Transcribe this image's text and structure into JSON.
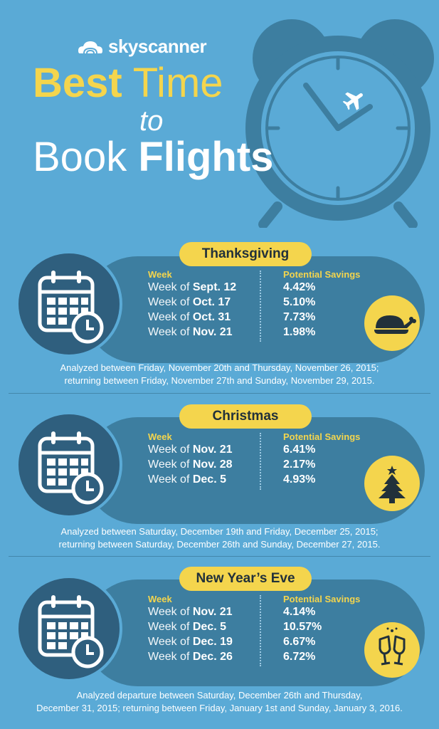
{
  "brand": {
    "name": "skyscanner"
  },
  "title": {
    "line1a": "Best",
    "line1b": " Time",
    "line2": "to",
    "line3a": "Book ",
    "line3b": "Flights"
  },
  "columns": {
    "week": "Week",
    "savings": "Potential Savings"
  },
  "week_prefix": "Week of ",
  "sections": [
    {
      "name": "Thanksgiving",
      "rows": [
        {
          "week": "Sept. 12",
          "savings": "4.42%"
        },
        {
          "week": "Oct. 17",
          "savings": "5.10%"
        },
        {
          "week": "Oct. 31",
          "savings": "7.73%"
        },
        {
          "week": "Nov. 21",
          "savings": "1.98%"
        }
      ],
      "note1": "Analyzed between Friday, November 20th and Thursday, November 26, 2015;",
      "note2": "returning between Friday, November 27th and Sunday, November 29, 2015."
    },
    {
      "name": "Christmas",
      "rows": [
        {
          "week": "Nov. 21",
          "savings": "6.41%"
        },
        {
          "week": "Nov. 28",
          "savings": "2.17%"
        },
        {
          "week": "Dec. 5",
          "savings": "4.93%"
        }
      ],
      "note1": "Analyzed between Saturday, December 19th and Friday, December 25, 2015;",
      "note2": "returning between Saturday, December 26th and Sunday, December 27, 2015."
    },
    {
      "name": "New Year’s Eve",
      "rows": [
        {
          "week": "Nov. 21",
          "savings": "4.14%"
        },
        {
          "week": "Dec. 5",
          "savings": "10.57%"
        },
        {
          "week": "Dec. 19",
          "savings": "6.67%"
        },
        {
          "week": "Dec. 26",
          "savings": "6.72%"
        }
      ],
      "note1": "Analyzed departure between Saturday, December 26th and Thursday,",
      "note2": "December 31, 2015; returning between Friday, January 1st and Sunday, January 3, 2016."
    }
  ],
  "icons": {
    "calendar": "calendar-clock-icon",
    "turkey": "turkey-icon",
    "tree": "christmas-tree-icon",
    "champagne": "champagne-glasses-icon",
    "plane": "airplane-icon",
    "clock": "alarm-clock-icon"
  },
  "colors": {
    "background": "#5aaad6",
    "band": "#3d7ea0",
    "accent": "#f4d54d",
    "dark": "#2f5f7e"
  }
}
